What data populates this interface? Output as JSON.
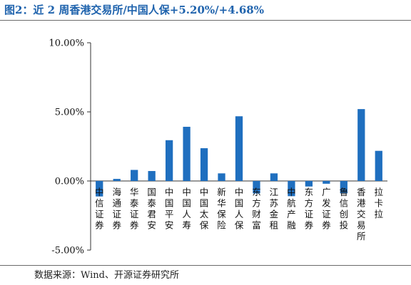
{
  "title": "图2：近 2 周香港交易所/中国人保+5.20%/+4.68%",
  "source": "数据来源：Wind、开源证券研究所",
  "chart_data": {
    "type": "bar",
    "categories": [
      "中信证券",
      "海通证券",
      "华泰证券",
      "国泰君安",
      "中国平安",
      "中国人寿",
      "中国太保",
      "新华保险",
      "中国人保",
      "东方财富",
      "江苏金租",
      "中航产融",
      "东方证券",
      "广发证券",
      "鲁信创投",
      "香港交易所",
      "拉卡拉"
    ],
    "values": [
      -1.12,
      0.15,
      0.8,
      0.72,
      2.95,
      3.92,
      2.37,
      0.55,
      4.68,
      -0.9,
      0.55,
      -1.1,
      -0.4,
      -0.2,
      -0.9,
      5.2,
      2.18
    ],
    "ylim": [
      -5,
      10
    ],
    "yticks": [
      -5,
      0,
      5,
      10
    ],
    "ytick_labels": [
      "-5.00%",
      "0.00%",
      "5.00%",
      "10.00%"
    ],
    "bar_color": "#1f6fbf",
    "grid": false
  }
}
